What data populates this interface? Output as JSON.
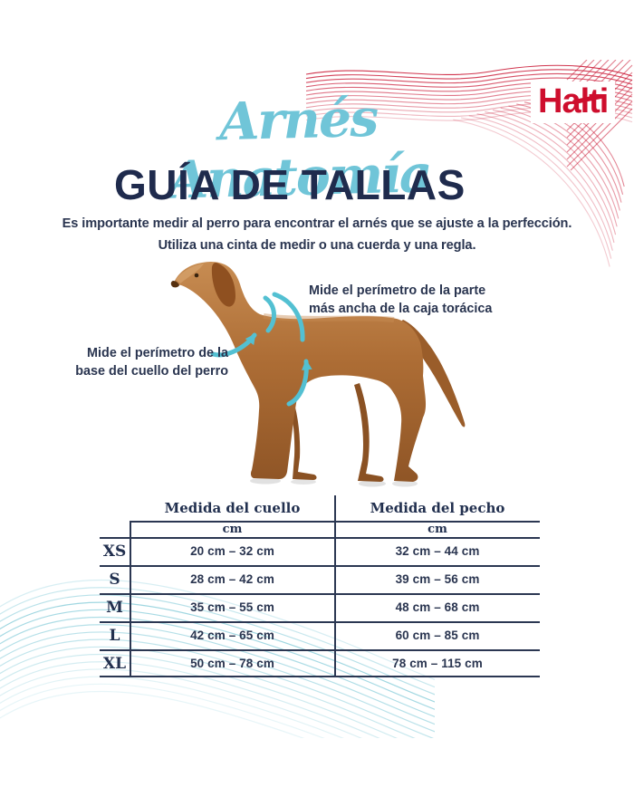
{
  "brand": {
    "logo": "Halti"
  },
  "header": {
    "script_title": "Arnés Anatomía",
    "title": "GUÍA DE TALLAS",
    "intro": "Es importante medir al perro para encontrar el arnés que se ajuste a la perfección.\nUtiliza una cinta de medir o una cuerda y una regla."
  },
  "diagram": {
    "chest_note": "Mide el perímetro de la parte\nmás ancha de la caja torácica",
    "neck_note": "Mide el perímetro de la\nbase del cuello del perro"
  },
  "size_table": {
    "columns": [
      "Medida del cuello",
      "Medida del pecho"
    ],
    "unit_label": "cm",
    "rows": [
      {
        "size": "XS",
        "neck": "20 cm – 32 cm",
        "chest": "32 cm – 44 cm"
      },
      {
        "size": "S",
        "neck": "28 cm – 42 cm",
        "chest": "39 cm – 56 cm"
      },
      {
        "size": "M",
        "neck": "35 cm – 55 cm",
        "chest": "48 cm – 68 cm"
      },
      {
        "size": "L",
        "neck": "42 cm – 65 cm",
        "chest": "60 cm – 85 cm"
      },
      {
        "size": "XL",
        "neck": "50 cm – 78 cm",
        "chest": "78 cm – 115 cm"
      }
    ]
  },
  "colors": {
    "navy": "#22304f",
    "teal_arrow": "#53c0d2",
    "script_blue": "#70c5d8",
    "brand_red": "#ce0e2d",
    "wave_red": "#c8102e",
    "wave_teal": "#7cc8d6",
    "dog_brown": "#ad6d35"
  }
}
